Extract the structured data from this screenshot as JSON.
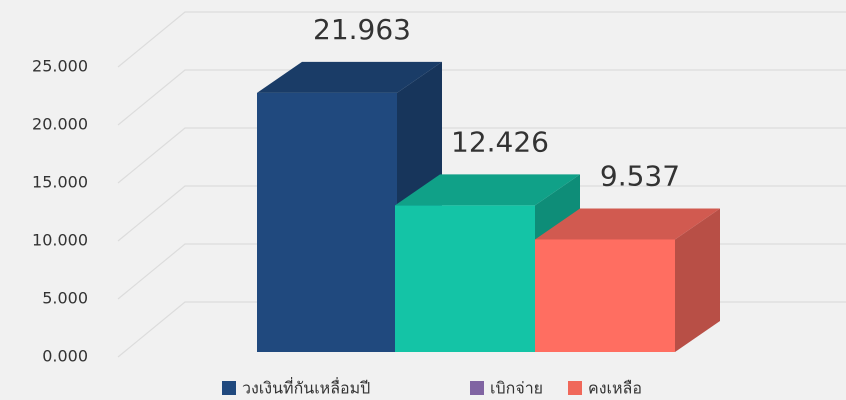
{
  "chart_data": {
    "type": "bar3d",
    "series": [
      {
        "name": "วงเงินที่กันเหลื่อมปี",
        "color": "#20497e",
        "legend_color": "#20497e",
        "values": [
          21.963
        ]
      },
      {
        "name": "เบิกจ่าย",
        "color": "#14c4a6",
        "legend_color": "#8064a2",
        "values": [
          12.426
        ]
      },
      {
        "name": "คงเหลือ",
        "color": "#ff6e61",
        "legend_color": "#f0685a",
        "values": [
          9.537
        ]
      }
    ],
    "ylim": [
      0,
      25
    ],
    "yticks": [
      {
        "value": 0,
        "label": "0.000"
      },
      {
        "value": 5,
        "label": "5.000"
      },
      {
        "value": 10,
        "label": "10.000"
      },
      {
        "value": 15,
        "label": "15.000"
      },
      {
        "value": 20,
        "label": "20.000"
      },
      {
        "value": 25,
        "label": "25.000"
      }
    ],
    "grid": true,
    "legend": "bottom"
  }
}
